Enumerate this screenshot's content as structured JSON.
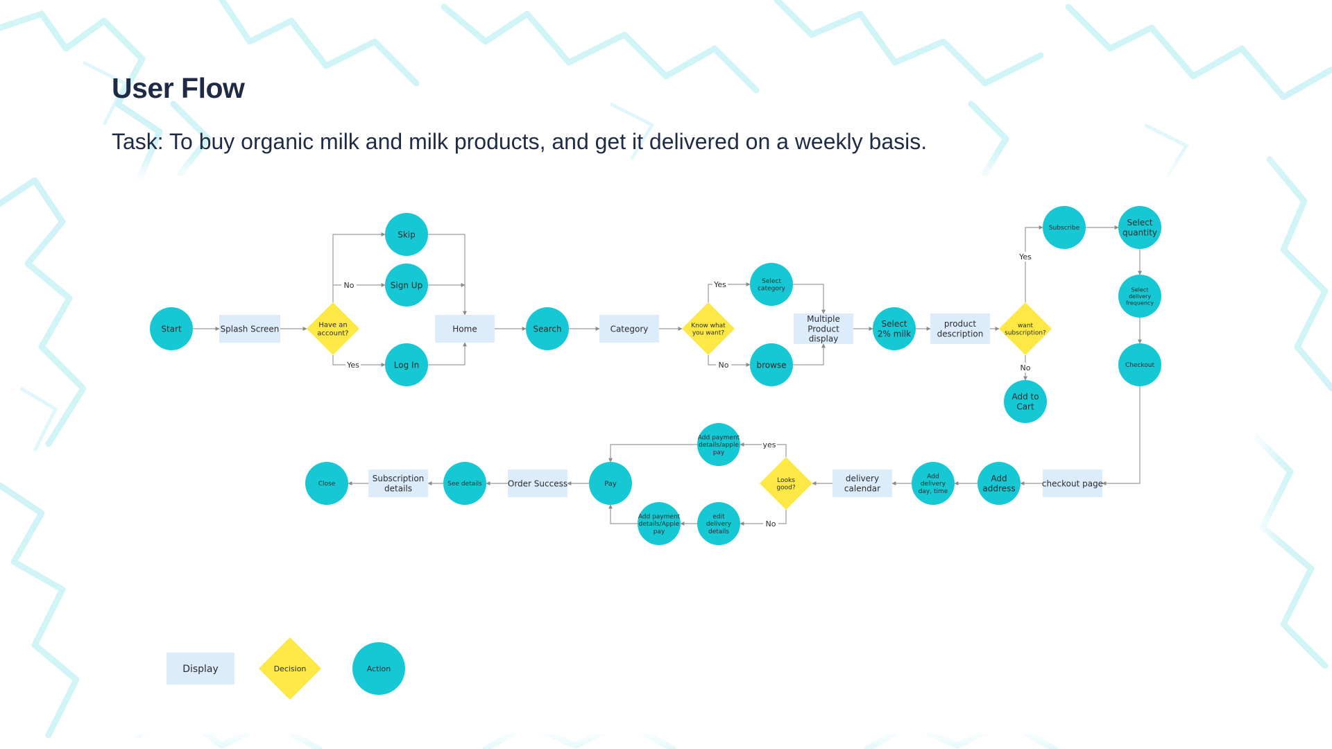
{
  "header": {
    "title": "User Flow",
    "task": "Task: To buy organic milk and milk products, and get it delivered on a weekly basis."
  },
  "colors": {
    "action": "#16c8d4",
    "decision": "#fde846",
    "display": "#dcecfb",
    "edge": "#9a9a9a",
    "background_pattern": "#c9f2f6"
  },
  "nodes": [
    {
      "id": "start",
      "type": "action",
      "label": "Start"
    },
    {
      "id": "splash",
      "type": "display",
      "label": "Splash Screen"
    },
    {
      "id": "have-account",
      "type": "decision",
      "label": "Have an account?"
    },
    {
      "id": "skip",
      "type": "action",
      "label": "Skip"
    },
    {
      "id": "signup",
      "type": "action",
      "label": "Sign Up"
    },
    {
      "id": "login",
      "type": "action",
      "label": "Log In"
    },
    {
      "id": "home",
      "type": "display",
      "label": "Home"
    },
    {
      "id": "search",
      "type": "action",
      "label": "Search"
    },
    {
      "id": "category",
      "type": "display",
      "label": "Category"
    },
    {
      "id": "know-what",
      "type": "decision",
      "label": "Know what you want?"
    },
    {
      "id": "select-category",
      "type": "action",
      "label": "Select category"
    },
    {
      "id": "browse",
      "type": "action",
      "label": "browse"
    },
    {
      "id": "multiple-product",
      "type": "display",
      "label": "Multiple Product display"
    },
    {
      "id": "select-milk",
      "type": "action",
      "label": "Select 2% milk"
    },
    {
      "id": "product-desc",
      "type": "display",
      "label": "product description"
    },
    {
      "id": "want-subscription",
      "type": "decision",
      "label": "want subscription?"
    },
    {
      "id": "subscribe",
      "type": "action",
      "label": "Subscribe"
    },
    {
      "id": "add-to-cart",
      "type": "action",
      "label": "Add to Cart"
    },
    {
      "id": "select-quantity",
      "type": "action",
      "label": "Select quantity"
    },
    {
      "id": "select-frequency",
      "type": "action",
      "label": "Select delivery frequency"
    },
    {
      "id": "checkout",
      "type": "action",
      "label": "Checkout"
    },
    {
      "id": "checkout-page",
      "type": "display",
      "label": "checkout page"
    },
    {
      "id": "add-address",
      "type": "action",
      "label": "Add address"
    },
    {
      "id": "add-delivery-day",
      "type": "action",
      "label": "Add delivery day, time"
    },
    {
      "id": "delivery-calendar",
      "type": "display",
      "label": "delivery calendar"
    },
    {
      "id": "looks-good",
      "type": "decision",
      "label": "Looks good?"
    },
    {
      "id": "add-payment-top",
      "type": "action",
      "label": "Add payment details/apple pay"
    },
    {
      "id": "edit-delivery",
      "type": "action",
      "label": "edit delivery details"
    },
    {
      "id": "add-payment-bottom",
      "type": "action",
      "label": "Add payment details/Apple pay"
    },
    {
      "id": "pay",
      "type": "action",
      "label": "Pay"
    },
    {
      "id": "order-success",
      "type": "display",
      "label": "Order Success"
    },
    {
      "id": "see-details",
      "type": "action",
      "label": "See details"
    },
    {
      "id": "subscription-details",
      "type": "display",
      "label": "Subscription details"
    },
    {
      "id": "close",
      "type": "action",
      "label": "Close"
    }
  ],
  "edges": [
    {
      "from": "start",
      "to": "splash"
    },
    {
      "from": "splash",
      "to": "have-account"
    },
    {
      "from": "have-account",
      "to": "skip"
    },
    {
      "from": "have-account",
      "to": "signup",
      "label": "No"
    },
    {
      "from": "have-account",
      "to": "login",
      "label": "Yes"
    },
    {
      "from": "skip",
      "to": "home"
    },
    {
      "from": "signup",
      "to": "home"
    },
    {
      "from": "login",
      "to": "home"
    },
    {
      "from": "home",
      "to": "search"
    },
    {
      "from": "search",
      "to": "category"
    },
    {
      "from": "category",
      "to": "know-what"
    },
    {
      "from": "know-what",
      "to": "select-category",
      "label": "Yes"
    },
    {
      "from": "know-what",
      "to": "browse",
      "label": "No"
    },
    {
      "from": "select-category",
      "to": "multiple-product"
    },
    {
      "from": "browse",
      "to": "multiple-product"
    },
    {
      "from": "multiple-product",
      "to": "select-milk"
    },
    {
      "from": "select-milk",
      "to": "product-desc"
    },
    {
      "from": "product-desc",
      "to": "want-subscription"
    },
    {
      "from": "want-subscription",
      "to": "subscribe",
      "label": "Yes"
    },
    {
      "from": "want-subscription",
      "to": "add-to-cart",
      "label": "No"
    },
    {
      "from": "subscribe",
      "to": "select-quantity"
    },
    {
      "from": "select-quantity",
      "to": "select-frequency"
    },
    {
      "from": "select-frequency",
      "to": "checkout"
    },
    {
      "from": "checkout",
      "to": "checkout-page"
    },
    {
      "from": "checkout-page",
      "to": "add-address"
    },
    {
      "from": "add-address",
      "to": "add-delivery-day"
    },
    {
      "from": "add-delivery-day",
      "to": "delivery-calendar"
    },
    {
      "from": "delivery-calendar",
      "to": "looks-good"
    },
    {
      "from": "looks-good",
      "to": "add-payment-top",
      "label": "yes"
    },
    {
      "from": "looks-good",
      "to": "edit-delivery",
      "label": "No"
    },
    {
      "from": "edit-delivery",
      "to": "add-payment-bottom"
    },
    {
      "from": "add-payment-top",
      "to": "pay"
    },
    {
      "from": "add-payment-bottom",
      "to": "pay"
    },
    {
      "from": "pay",
      "to": "order-success"
    },
    {
      "from": "order-success",
      "to": "see-details"
    },
    {
      "from": "see-details",
      "to": "subscription-details"
    },
    {
      "from": "subscription-details",
      "to": "close"
    }
  ],
  "legend": [
    {
      "type": "display",
      "label": "Display"
    },
    {
      "type": "decision",
      "label": "Decision"
    },
    {
      "type": "action",
      "label": "Action"
    }
  ]
}
